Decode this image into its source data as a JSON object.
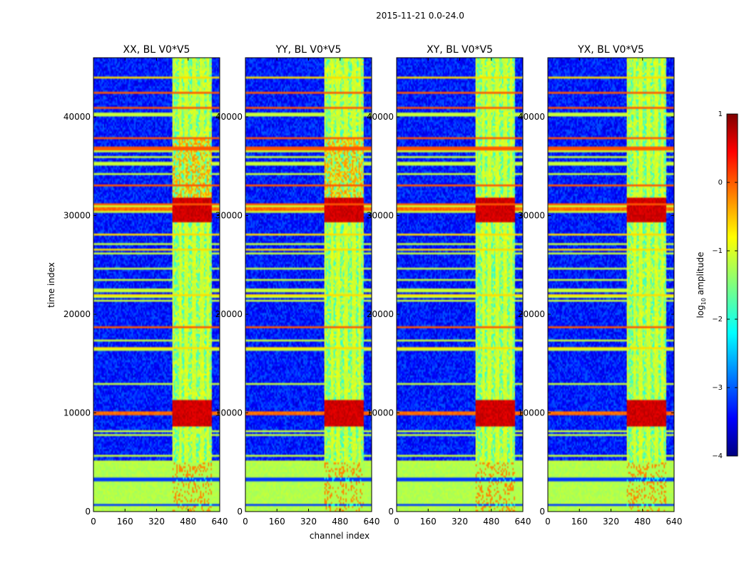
{
  "chart_data": {
    "type": "heatmap",
    "suptitle": "2015-11-21 0.0-24.0",
    "xlabel": "channel index",
    "ylabel": "time index",
    "xlim": [
      0,
      640
    ],
    "ylim": [
      0,
      46000
    ],
    "xticks": [
      0,
      160,
      320,
      480,
      640
    ],
    "yticks": [
      0,
      10000,
      20000,
      30000,
      40000
    ],
    "panels": [
      {
        "title": "XX, BL V0*V5"
      },
      {
        "title": "YY, BL V0*V5"
      },
      {
        "title": "XY, BL V0*V5"
      },
      {
        "title": "YX, BL V0*V5"
      }
    ],
    "colorbar": {
      "label": "log",
      "label_sub": "10",
      "label_rest": " amplitude",
      "range": [
        -4,
        1
      ],
      "ticks": [
        1,
        0,
        -1,
        -2,
        -3,
        -4
      ],
      "tick_labels": [
        "1",
        "0",
        "−1",
        "−2",
        "−3",
        "−4"
      ],
      "colormap": "jet"
    },
    "model": {
      "band_channels": [
        400,
        600
      ],
      "band_columns": [
        400,
        440,
        470,
        510,
        550,
        580
      ],
      "hot_times": [
        10000,
        30600
      ],
      "flag_green_times": [
        0,
        5000
      ],
      "flag_lines": [
        16500,
        18700,
        22000,
        26500,
        28000,
        31200,
        33000,
        36800,
        37800,
        41000,
        42500,
        44000
      ]
    }
  }
}
